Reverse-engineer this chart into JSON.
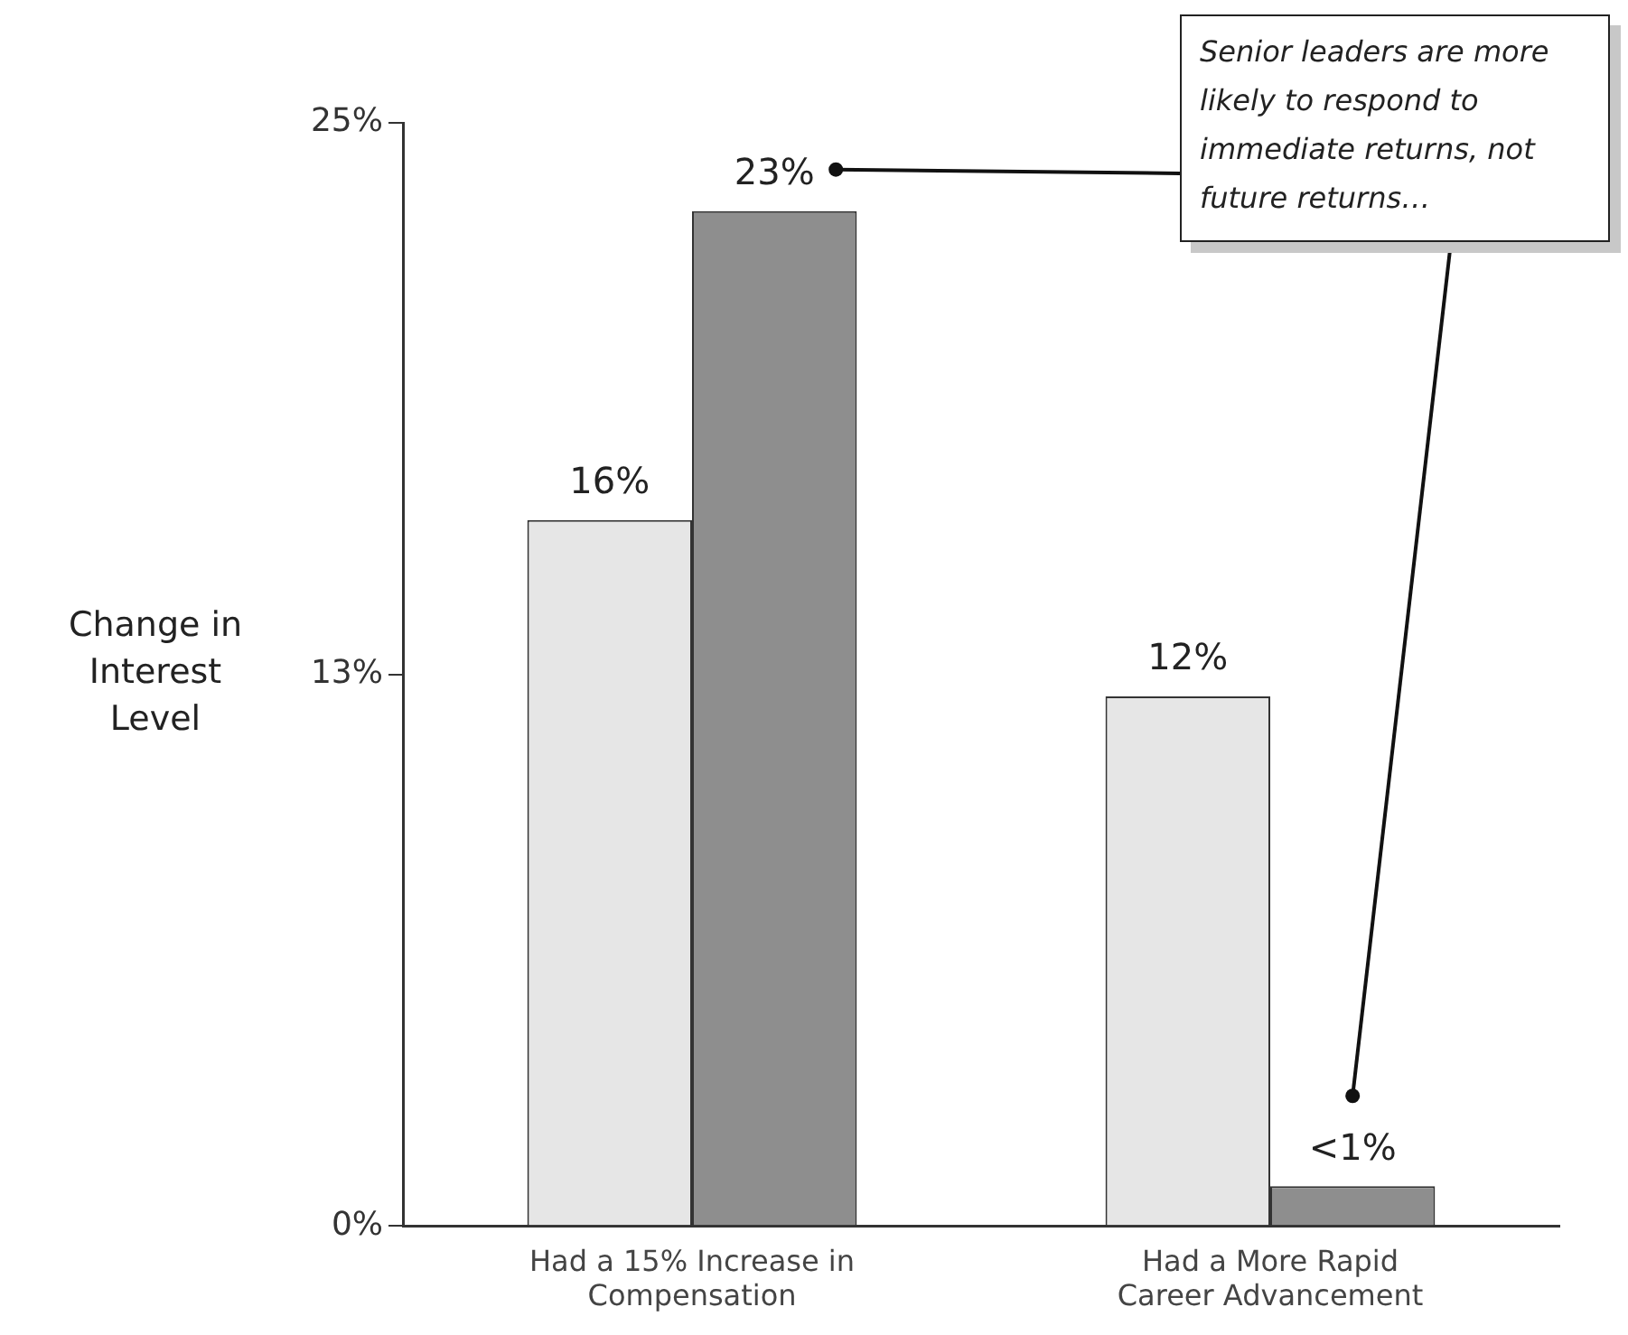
{
  "chart_data": {
    "type": "bar",
    "ylabel": "Change in Interest Level",
    "categories": [
      "Had a 15% Increase in Compensation",
      "Had a More Rapid Career Advancement"
    ],
    "series": [
      {
        "color": "#e6e6e6",
        "values": [
          16,
          12
        ],
        "value_labels": [
          "16%",
          "12%"
        ]
      },
      {
        "color": "#8e8e8e",
        "values": [
          23,
          0.9
        ],
        "value_labels": [
          "23%",
          "<1%"
        ]
      }
    ],
    "ylim": [
      0,
      25
    ],
    "yticks": [
      {
        "value": 0,
        "label": "0%"
      },
      {
        "value": 12.5,
        "label": "13%"
      },
      {
        "value": 25,
        "label": "25%"
      }
    ],
    "annotations": [
      "Senior leaders are more likely to respond to immediate returns, not future returns…"
    ]
  }
}
